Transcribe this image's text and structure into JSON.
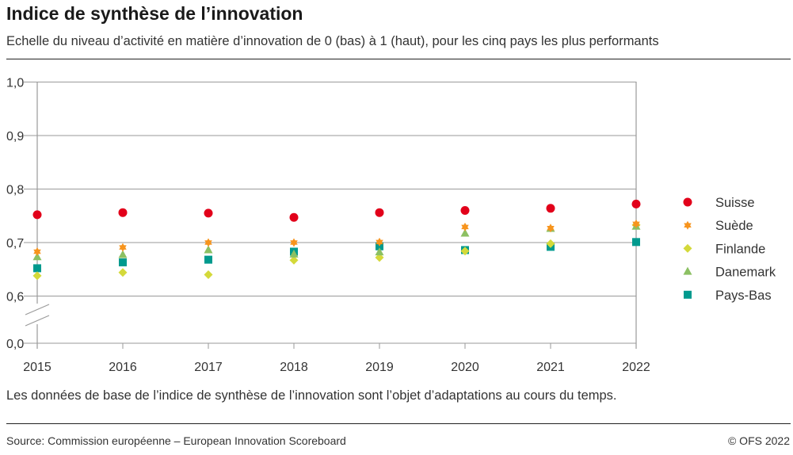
{
  "header": {
    "title": "Indice de synthèse de l’innovation",
    "subtitle": "Echelle du niveau d’activité en matière d’innovation de 0 (bas) à 1 (haut), pour les cinq pays les plus performants"
  },
  "footer": {
    "note": "Les données de base de l’indice de synthèse de l’innovation sont l’objet d’adaptations au cours du temps.",
    "source": "Source: Commission européenne – European Innovation Scoreboard",
    "copyright": "© OFS 2022"
  },
  "chart_data": {
    "type": "scatter",
    "title": "Indice de synthèse de l’innovation",
    "xlabel": "",
    "ylabel": "",
    "x": [
      2015,
      2016,
      2017,
      2018,
      2019,
      2020,
      2021,
      2022
    ],
    "x_tick_labels": [
      "2015",
      "2016",
      "2017",
      "2018",
      "2019",
      "2020",
      "2021",
      "2022"
    ],
    "y_tick_labels": [
      "0,0",
      "0,6",
      "0,7",
      "0,8",
      "0,9",
      "1,0"
    ],
    "ylim": [
      0.6,
      1.0
    ],
    "y_axis_break": "between 0,0 and 0,6",
    "grid": "horizontal",
    "legend_position": "right",
    "series": [
      {
        "name": "Suisse",
        "marker": "circle",
        "color": "#e2001a",
        "values": [
          0.752,
          0.756,
          0.755,
          0.747,
          0.756,
          0.76,
          0.764,
          0.772
        ]
      },
      {
        "name": "Suède",
        "marker": "star",
        "color": "#f7941d",
        "values": [
          0.683,
          0.691,
          0.7,
          0.7,
          0.701,
          0.729,
          0.727,
          0.735
        ]
      },
      {
        "name": "Finlande",
        "marker": "diamond",
        "color": "#d4d93a",
        "values": [
          0.638,
          0.644,
          0.64,
          0.667,
          0.672,
          0.684,
          0.698,
          0.733
        ]
      },
      {
        "name": "Danemark",
        "marker": "triangle",
        "color": "#8cc063",
        "values": [
          0.673,
          0.677,
          0.686,
          0.678,
          0.682,
          0.717,
          0.726,
          0.73
        ]
      },
      {
        "name": "Pays-Bas",
        "marker": "square",
        "color": "#009a8e",
        "values": [
          0.652,
          0.663,
          0.668,
          0.683,
          0.693,
          0.686,
          0.692,
          0.701
        ]
      }
    ]
  }
}
